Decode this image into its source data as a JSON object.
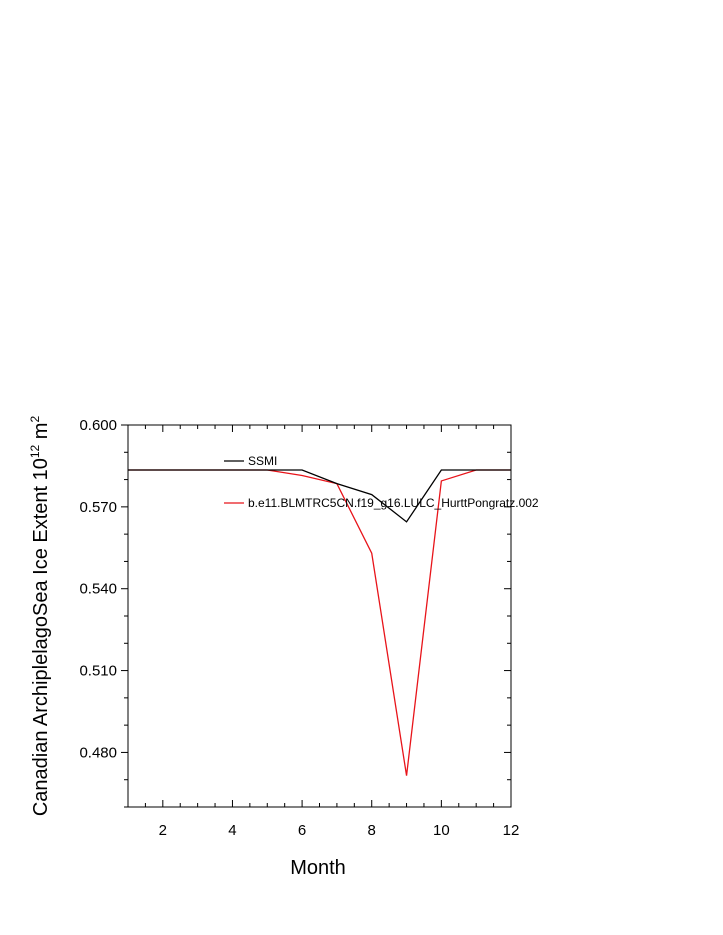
{
  "chart_data": {
    "type": "line",
    "xlabel": "Month",
    "ylabel": "Canadian ArchiplelagoSea Ice Extent 10",
    "ylabel_sup_exp": "12",
    "ylabel_unit": " m",
    "ylabel_sup_unit": "2",
    "xlim": [
      1,
      12
    ],
    "ylim": [
      0.46,
      0.6
    ],
    "x_ticks": [
      2,
      4,
      6,
      8,
      10,
      12
    ],
    "y_ticks": [
      0.48,
      0.51,
      0.54,
      0.57,
      0.6
    ],
    "y_tick_labels": [
      "0.480",
      "0.510",
      "0.540",
      "0.570",
      "0.600"
    ],
    "grid": false,
    "legend_position": "inside-top",
    "x": [
      1,
      2,
      3,
      4,
      5,
      6,
      7,
      8,
      9,
      10,
      11,
      12
    ],
    "series": [
      {
        "name": "SSMI",
        "color": "#000000",
        "values": [
          0.5835,
          0.5835,
          0.5835,
          0.5835,
          0.5835,
          0.5835,
          0.5785,
          0.5745,
          0.5645,
          0.5835,
          0.5835,
          0.5835
        ]
      },
      {
        "name": "b.e11.BLMTRC5CN.f19_g16.LULC_HurttPongratz.002",
        "color": "#e8141a",
        "values": [
          0.5835,
          0.5835,
          0.5835,
          0.5835,
          0.5835,
          0.5815,
          0.5785,
          0.553,
          0.4715,
          0.5795,
          0.5835,
          0.5835
        ]
      }
    ]
  }
}
